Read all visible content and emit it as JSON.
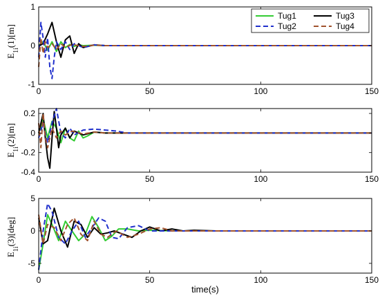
{
  "chart_data": [
    {
      "type": "line",
      "ylabel": "E",
      "ylabel_sub": "1i",
      "ylabel_suffix": "(1)[m]",
      "xlim": [
        0,
        150
      ],
      "ylim": [
        -1,
        1
      ],
      "xticks": [
        "0",
        "50",
        "100",
        "150"
      ],
      "yticks": [
        "-1",
        "0",
        "1"
      ],
      "legend": {
        "position": "top-right",
        "entries": [
          "Tug1",
          "Tug3",
          "Tug2",
          "Tug4"
        ]
      },
      "series": [
        {
          "name": "Tug1",
          "color": "#33cc33",
          "dash": "solid",
          "x": [
            0,
            2,
            4,
            6,
            8,
            10,
            12,
            14,
            16,
            18,
            20,
            25,
            30,
            40,
            60,
            100,
            150
          ],
          "y": [
            0,
            0.1,
            -0.12,
            0.1,
            -0.15,
            0.1,
            -0.05,
            0.03,
            -0.02,
            0.02,
            0,
            0.01,
            0,
            0,
            0,
            0,
            0
          ]
        },
        {
          "name": "Tug3",
          "color": "#000000",
          "dash": "solid",
          "x": [
            0,
            2,
            4,
            6,
            8,
            10,
            12,
            14,
            16,
            18,
            20,
            25,
            30,
            40,
            60,
            100,
            150
          ],
          "y": [
            0,
            0.05,
            0.3,
            0.6,
            0.1,
            -0.3,
            0.15,
            0.25,
            -0.2,
            0.05,
            -0.05,
            0.02,
            0,
            0,
            0,
            0,
            0
          ]
        },
        {
          "name": "Tug2",
          "color": "#1f2fcc",
          "dash": "dash",
          "x": [
            0,
            1,
            2,
            3,
            4,
            5,
            6,
            7,
            8,
            10,
            12,
            14,
            16,
            20,
            25,
            30,
            40,
            60,
            100,
            150
          ],
          "y": [
            -0.3,
            0.6,
            0.2,
            -0.3,
            0.2,
            -0.55,
            -0.85,
            -0.3,
            0.1,
            -0.1,
            0.1,
            -0.1,
            0.05,
            -0.05,
            0.02,
            0,
            0,
            0,
            0,
            0
          ]
        },
        {
          "name": "Tug4",
          "color": "#a0522d",
          "dash": "dash",
          "x": [
            0,
            1,
            2,
            3,
            4,
            6,
            8,
            10,
            12,
            15,
            20,
            25,
            30,
            40,
            60,
            100,
            150
          ],
          "y": [
            -0.55,
            0.2,
            -0.2,
            0.1,
            -0.05,
            0.05,
            -0.1,
            0.05,
            -0.05,
            0.03,
            -0.02,
            0.01,
            0,
            0,
            0,
            0,
            0
          ]
        }
      ]
    },
    {
      "type": "line",
      "ylabel": "E",
      "ylabel_sub": "1i",
      "ylabel_suffix": "(2)[m]",
      "xlim": [
        0,
        150
      ],
      "ylim": [
        -0.4,
        0.25
      ],
      "xticks": [
        "0",
        "50",
        "100",
        "150"
      ],
      "yticks": [
        "-0.4",
        "-0.2",
        "0",
        "0.2"
      ],
      "yticks_values": [
        -0.4,
        -0.2,
        0,
        0.2
      ],
      "series": [
        {
          "name": "Tug1",
          "color": "#33cc33",
          "dash": "solid",
          "x": [
            0,
            2,
            4,
            6,
            8,
            10,
            12,
            14,
            16,
            18,
            20,
            22,
            25,
            30,
            40,
            60,
            100,
            150
          ],
          "y": [
            0,
            0.15,
            -0.05,
            0.12,
            0.05,
            -0.1,
            0.05,
            -0.05,
            -0.08,
            0.02,
            -0.05,
            -0.03,
            0.01,
            0,
            0,
            0,
            0,
            0
          ]
        },
        {
          "name": "Tug3",
          "color": "#000000",
          "dash": "solid",
          "x": [
            0,
            2,
            3,
            4,
            5,
            6,
            7,
            8,
            9,
            10,
            12,
            14,
            16,
            20,
            25,
            30,
            40,
            60,
            100,
            150
          ],
          "y": [
            0,
            0.2,
            -0.05,
            -0.25,
            -0.36,
            -0.05,
            0.22,
            0.05,
            -0.15,
            -0.02,
            0.05,
            -0.05,
            0.02,
            -0.02,
            0.01,
            0,
            0,
            0,
            0,
            0
          ]
        },
        {
          "name": "Tug2",
          "color": "#1f2fcc",
          "dash": "dash",
          "x": [
            0,
            2,
            4,
            6,
            8,
            10,
            12,
            14,
            16,
            20,
            25,
            30,
            35,
            40,
            60,
            100,
            150
          ],
          "y": [
            -0.05,
            0.1,
            -0.1,
            0.1,
            0.25,
            0,
            -0.05,
            0.05,
            -0.02,
            0.03,
            0.04,
            0.03,
            0.02,
            0,
            0,
            0,
            0
          ]
        },
        {
          "name": "Tug4",
          "color": "#a0522d",
          "dash": "dash",
          "x": [
            0,
            1,
            2,
            3,
            4,
            6,
            8,
            10,
            12,
            15,
            20,
            25,
            30,
            40,
            60,
            100,
            150
          ],
          "y": [
            0.1,
            -0.15,
            0.2,
            -0.05,
            -0.15,
            0.05,
            -0.05,
            0.02,
            -0.02,
            0.02,
            -0.01,
            0.01,
            0,
            0,
            0,
            0,
            0
          ]
        }
      ]
    },
    {
      "type": "line",
      "ylabel": "E",
      "ylabel_sub": "1i",
      "ylabel_suffix": "(3)[deg]",
      "xlabel": "time(s)",
      "xlim": [
        0,
        150
      ],
      "ylim": [
        -6.5,
        5
      ],
      "xticks": [
        "0",
        "50",
        "100",
        "150"
      ],
      "yticks": [
        "-5",
        "0",
        "5"
      ],
      "yticks_values": [
        -5,
        0,
        5
      ],
      "series": [
        {
          "name": "Tug1",
          "color": "#33cc33",
          "dash": "solid",
          "x": [
            0,
            2,
            4,
            6,
            9,
            12,
            15,
            18,
            21,
            24,
            27,
            30,
            33,
            36,
            40,
            45,
            50,
            60,
            80,
            100,
            150
          ],
          "y": [
            -6,
            -2,
            2.5,
            1,
            -1.5,
            1.5,
            0,
            -1.5,
            -0.5,
            2.2,
            0.5,
            -1.5,
            -0.8,
            0.3,
            0.3,
            0,
            0.1,
            0,
            0,
            0,
            0
          ]
        },
        {
          "name": "Tug3",
          "color": "#000000",
          "dash": "solid",
          "x": [
            0,
            2,
            4,
            7,
            10,
            13,
            16,
            19,
            22,
            25,
            28,
            31,
            34,
            38,
            42,
            46,
            50,
            55,
            60,
            65,
            70,
            80,
            100,
            150
          ],
          "y": [
            2,
            -2,
            -1.5,
            3.5,
            0,
            -2.5,
            1.5,
            1,
            -1,
            0.5,
            -0.5,
            -0.3,
            0,
            -0.5,
            -1,
            0,
            0.6,
            0,
            0.3,
            0,
            0.1,
            0,
            0,
            0
          ]
        },
        {
          "name": "Tug2",
          "color": "#1f2fcc",
          "dash": "dash",
          "x": [
            0,
            2,
            4,
            6,
            9,
            12,
            15,
            18,
            21,
            24,
            27,
            30,
            33,
            36,
            40,
            45,
            50,
            60,
            80,
            100,
            150
          ],
          "y": [
            -6,
            0,
            4.2,
            3,
            -1,
            -2,
            0,
            1.5,
            -1,
            0.5,
            2,
            1.5,
            -1,
            -1.2,
            0.5,
            0.8,
            0,
            0,
            0,
            0,
            0
          ]
        },
        {
          "name": "Tug4",
          "color": "#a0522d",
          "dash": "dash",
          "x": [
            0,
            2,
            4,
            7,
            10,
            13,
            16,
            19,
            22,
            25,
            28,
            31,
            35,
            40,
            45,
            50,
            55,
            60,
            80,
            100,
            150
          ],
          "y": [
            2.5,
            -2,
            1,
            0.5,
            -1.5,
            1,
            2,
            -0.5,
            -1.5,
            1.5,
            -0.5,
            -1,
            0,
            -1,
            -0.5,
            0.3,
            0.5,
            0,
            0,
            0,
            0
          ]
        }
      ]
    }
  ]
}
